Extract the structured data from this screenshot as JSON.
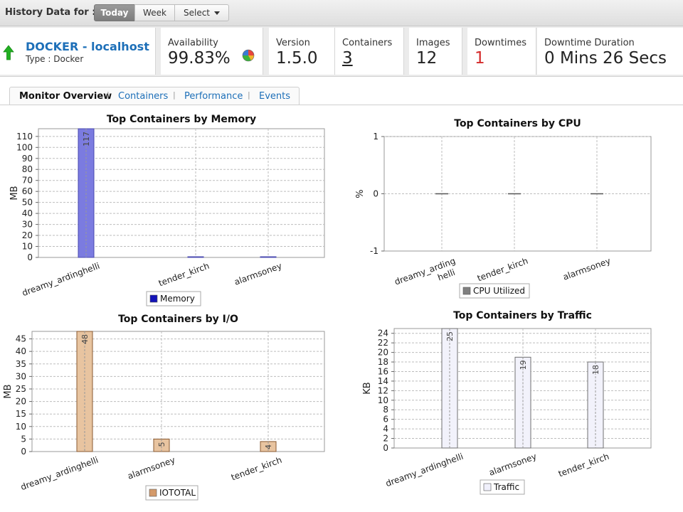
{
  "history": {
    "label": "History Data for :",
    "options": [
      "Today",
      "Week",
      "Select"
    ],
    "active": "Today"
  },
  "monitor": {
    "name": "DOCKER - localhost",
    "type": "Type : Docker",
    "status": "up"
  },
  "summary": {
    "availability_label": "Availability",
    "availability_value": "99.83%",
    "version_label": "Version",
    "version_value": "1.5.0",
    "containers_label": "Containers",
    "containers_value": "3",
    "images_label": "Images",
    "images_value": "12",
    "downtimes_label": "Downtimes",
    "downtimes_value": "1",
    "duration_label": "Downtime Duration",
    "duration_value": "0 Mins 26 Secs"
  },
  "tabs": [
    "Monitor Overview",
    "Containers",
    "Performance",
    "Events"
  ],
  "colors": {
    "link": "#1d6fb8",
    "up": "#22b022",
    "alert": "#d42a2a",
    "memory": "#7b7be0",
    "memory_legend": "#1212b8",
    "cpu_legend": "#808080",
    "io": "#e8c4a0",
    "io_legend": "#d49a6a",
    "traffic": "#f2f2fb"
  },
  "chart_data": [
    {
      "id": "memory",
      "type": "bar",
      "title": "Top Containers by Memory",
      "ylabel": "MB",
      "categories": [
        "dreamy_ardinghelli",
        "tender_kirch",
        "alarmsoney"
      ],
      "values": [
        117,
        0,
        0
      ],
      "data_labels": [
        "117",
        "",
        ""
      ],
      "ylim": [
        0,
        117
      ],
      "yticks": [
        0,
        10,
        20,
        30,
        40,
        50,
        60,
        70,
        80,
        90,
        100,
        110
      ],
      "legend": "Memory",
      "grid": true
    },
    {
      "id": "cpu",
      "type": "bar",
      "title": "Top Containers by CPU",
      "ylabel": "%",
      "categories": [
        "dreamy_ardinghelli",
        "tender_kirch",
        "alarmsoney"
      ],
      "category_lines": [
        [
          "dreamy_arding",
          "helli"
        ],
        [
          "tender_kirch"
        ],
        [
          "alarmsoney"
        ]
      ],
      "values": [
        0,
        0,
        0
      ],
      "data_labels": [
        "",
        "",
        ""
      ],
      "ylim": [
        -1,
        1
      ],
      "yticks": [
        -1,
        0,
        1
      ],
      "legend": "CPU Utilized",
      "grid": true
    },
    {
      "id": "io",
      "type": "bar",
      "title": "Top Containers by I/O",
      "ylabel": "MB",
      "categories": [
        "dreamy_ardinghelli",
        "alarmsoney",
        "tender_kirch"
      ],
      "values": [
        48,
        5,
        4
      ],
      "data_labels": [
        "48",
        "5",
        "4"
      ],
      "ylim": [
        0,
        48
      ],
      "yticks": [
        0,
        5,
        10,
        15,
        20,
        25,
        30,
        35,
        40,
        45
      ],
      "legend": "IOTOTAL",
      "grid": true
    },
    {
      "id": "traffic",
      "type": "bar",
      "title": "Top Containers by Traffic",
      "ylabel": "KB",
      "categories": [
        "dreamy_ardinghelli",
        "alarmsoney",
        "tender_kirch"
      ],
      "values": [
        25,
        19,
        18
      ],
      "data_labels": [
        "25",
        "19",
        "18"
      ],
      "ylim": [
        0,
        25
      ],
      "yticks": [
        0,
        2,
        4,
        6,
        8,
        10,
        12,
        14,
        16,
        18,
        20,
        22,
        24
      ],
      "legend": "Traffic",
      "grid": true
    }
  ]
}
